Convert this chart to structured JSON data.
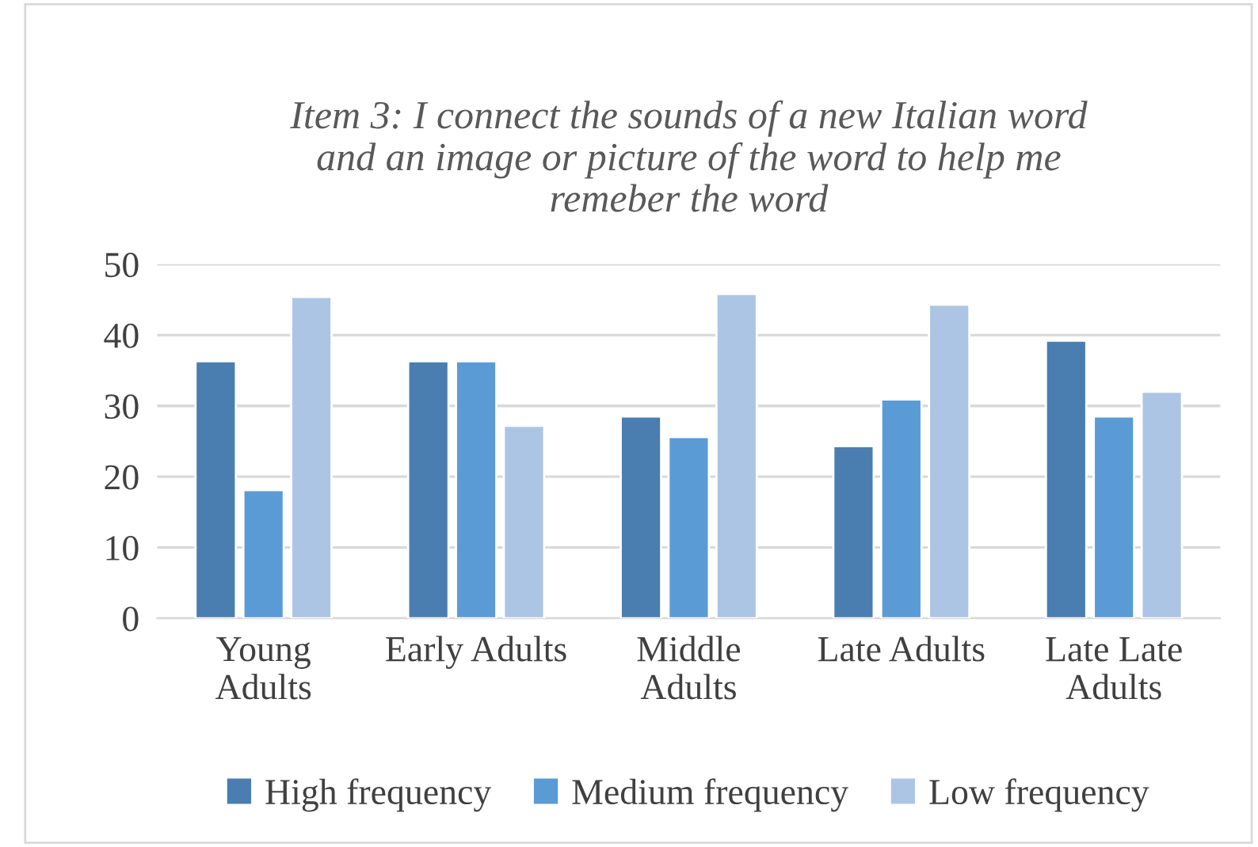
{
  "chart_data": {
    "type": "bar",
    "title": "Item 3: I connect the sounds of a new Italian word\nand an image or picture of the word to help me\nremeber the word",
    "categories": [
      "Young\nAdults",
      "Early Adults",
      "Middle\nAdults",
      "Late Adults",
      "Late Late\nAdults"
    ],
    "series": [
      {
        "name": "High frequency",
        "color": "#4a7eb0",
        "values": [
          36.3,
          36.3,
          28.5,
          24.3,
          39.2
        ]
      },
      {
        "name": "Medium frequency",
        "color": "#5b9bd5",
        "values": [
          18.1,
          36.3,
          25.6,
          30.9,
          28.5
        ]
      },
      {
        "name": "Low frequency",
        "color": "#adc5e5",
        "values": [
          45.4,
          27.2,
          45.8,
          44.3,
          32.0
        ]
      }
    ],
    "ylim": [
      0,
      50
    ],
    "yticks": [
      0,
      10,
      20,
      30,
      40,
      50
    ],
    "grid": "y",
    "legend": "bottom"
  }
}
